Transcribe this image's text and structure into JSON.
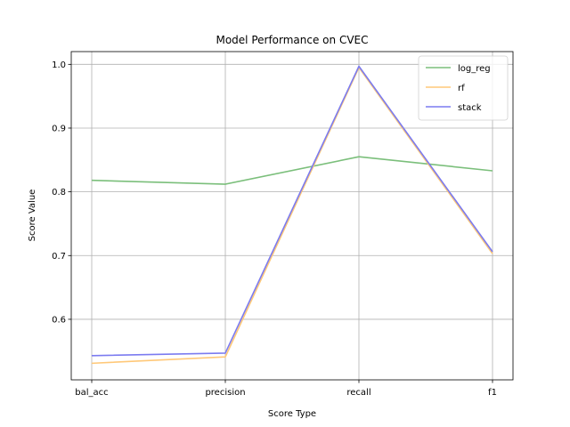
{
  "chart_data": {
    "type": "line",
    "title": "Model Performance on CVEC",
    "xlabel": "Score Type",
    "ylabel": "Score Value",
    "categories": [
      "bal_acc",
      "precision",
      "recall",
      "f1"
    ],
    "ylim": [
      0.505,
      1.02
    ],
    "yticks": [
      0.6,
      0.7,
      0.8,
      0.9,
      1.0
    ],
    "ytick_labels": [
      "0.6",
      "0.7",
      "0.8",
      "0.9",
      "1.0"
    ],
    "grid": true,
    "legend_position": "top-right",
    "series": [
      {
        "name": "log_reg",
        "color": "#7bbf7b",
        "values": [
          0.818,
          0.812,
          0.855,
          0.833
        ]
      },
      {
        "name": "rf",
        "color": "#ffc878",
        "values": [
          0.531,
          0.541,
          0.995,
          0.703
        ]
      },
      {
        "name": "stack",
        "color": "#7b7bf0",
        "values": [
          0.543,
          0.547,
          0.997,
          0.706
        ]
      }
    ]
  }
}
